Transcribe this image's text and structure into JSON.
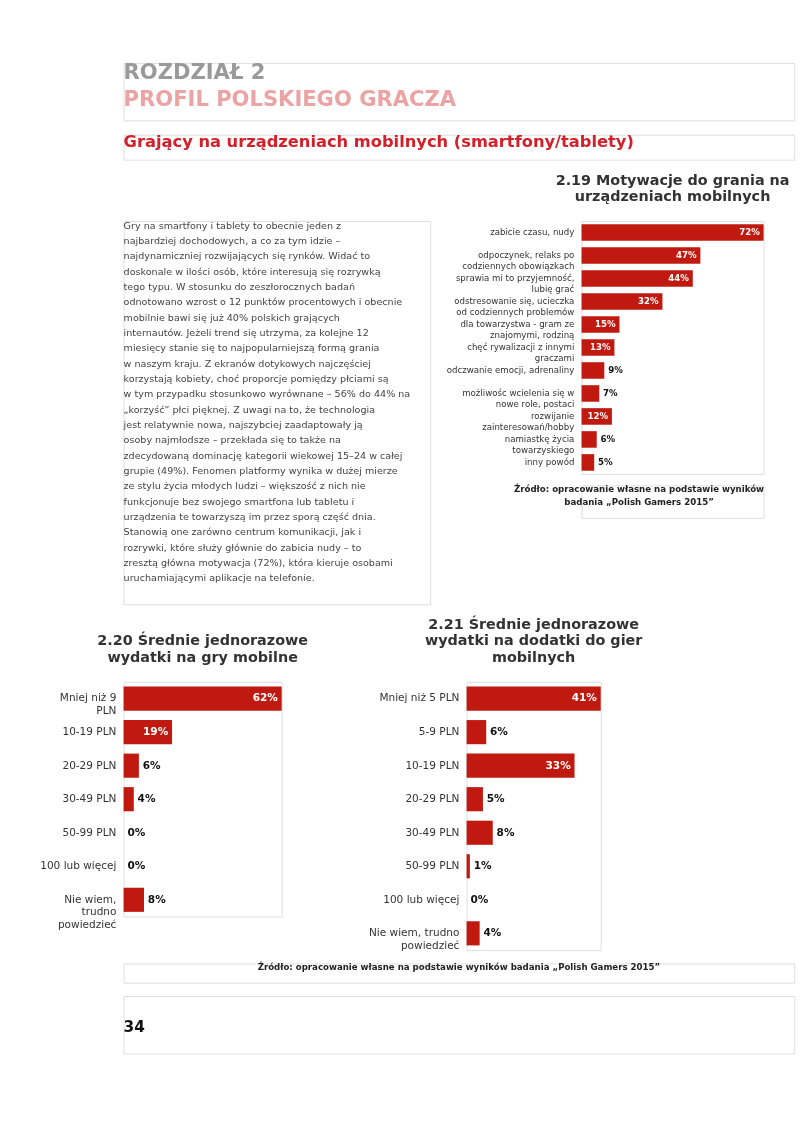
{
  "chart_data": [
    {
      "type": "other",
      "title": "ROZDZIAŁ 2",
      "subtitle": "PROFIL POLSKIEGO GRACZA",
      "annotations": [
        "Grający na urządzeniach mobilnych (smartfony/tablety)",
        "Gry na smartfony i tablety to obecnie jeden z najbardziej dochodowych, a co za tym idzie – najdynamiczniej rozwijających się rynków. Widać to doskonale w ilości osób, które interesują się rozrywką tego typu. W stosunku do zeszłorocznych badań odnotowano wzrost o 12 punktów procentowych i obecnie mobilnie bawi się już 40% polskich grających internautów. Jeżeli trend się utrzyma, za kolejne 12 miesięcy stanie się to najpopularniejszą formą grania w naszym kraju. Z ekranów dotykowych najczęściej korzystają kobiety, choć proporcje pomiędzy płciami są w tym przypadku stosunkowo wyrównane – 56% do 44% na „korzyść” płci pięknej. Z uwagi na to, że technologia jest relatywnie nowa, najszybciej zaadaptowały ją osoby najmłodsze – przekłada się to także na zdecydowaną dominację kategorii wiekowej 15–24 w całej grupie (49%). Fenomen platformy wynika w dużej mierze ze stylu życia młodych ludzi – większość z nich nie funkcjonuje bez swojego smartfona lub tabletu i urządzenia te towarzyszą im przez sporą część dnia. Stanowią one zarówno centrum komunikacji, jak i rozrywki, które służy głównie do zabicia nudy – to zresztą główna motywacja (72%), która kieruje osobami uruchamiającymi aplikacje na telefonie.",
        "34"
      ]
    },
    {
      "type": "bar",
      "orientation": "horizontal",
      "title": "2.19 Motywacje do grania na urządzeniach mobilnych",
      "color": "#c01a10",
      "categories": [
        "zabicie czasu, nudy",
        "odpoczynek, relaks po codziennych obowiązkach",
        "sprawia mi to przyjemność, lubię grać",
        "odstresowanie się, ucieczka od codziennych problemów",
        "dla towarzystwa - gram ze znajomymi, rodziną",
        "chęć rywalizacji z innymi graczami",
        "odczwanie emocji, adrenaliny",
        "możliwośc wcielenia się w nowe role, postaci",
        "rozwijanie zainteresowań/hobby",
        "namiastkę życia towarzyskiego",
        "inny powód"
      ],
      "values": [
        72,
        47,
        44,
        32,
        15,
        13,
        9,
        7,
        12,
        6,
        5
      ],
      "value_labels": [
        "72%",
        "47%",
        "44%",
        "32%",
        "15%",
        "13%",
        "9%",
        "7%",
        "12%",
        "6%",
        "5%"
      ],
      "annotations": [
        "Źródło: opracowanie własne na podstawie wyników badania „Polish Gamers 2015”"
      ]
    },
    {
      "type": "bar",
      "orientation": "horizontal",
      "title": "2.20 Średnie jednorazowe wydatki na gry mobilne",
      "color": "#c01a10",
      "categories": [
        "Mniej niż 9 PLN",
        "10-19 PLN",
        "20-29 PLN",
        "30-49 PLN",
        "50-99 PLN",
        "100 lub więcej",
        "Nie wiem, trudno powiedzieć"
      ],
      "values": [
        62,
        19,
        6,
        4,
        0,
        0,
        8
      ],
      "value_labels": [
        "62%",
        "19%",
        "6%",
        "4%",
        "0%",
        "0%",
        "8%"
      ]
    },
    {
      "type": "bar",
      "orientation": "horizontal",
      "title": "2.21 Średnie jednorazowe wydatki na dodatki do gier mobilnych",
      "color": "#c01a10",
      "categories": [
        "Mniej niż 5 PLN",
        "5-9 PLN",
        "10-19 PLN",
        "20-29 PLN",
        "30-49 PLN",
        "50-99 PLN",
        "100 lub więcej",
        "Nie wiem, trudno powiedzieć"
      ],
      "values": [
        41,
        6,
        33,
        5,
        8,
        1,
        0,
        4
      ],
      "value_labels": [
        "41%",
        "6%",
        "33%",
        "5%",
        "8%",
        "1%",
        "0%",
        "4%"
      ],
      "annotations": [
        "Źródło: opracowanie własne na podstawie wyników badania „Polish Gamers 2015”"
      ]
    }
  ]
}
